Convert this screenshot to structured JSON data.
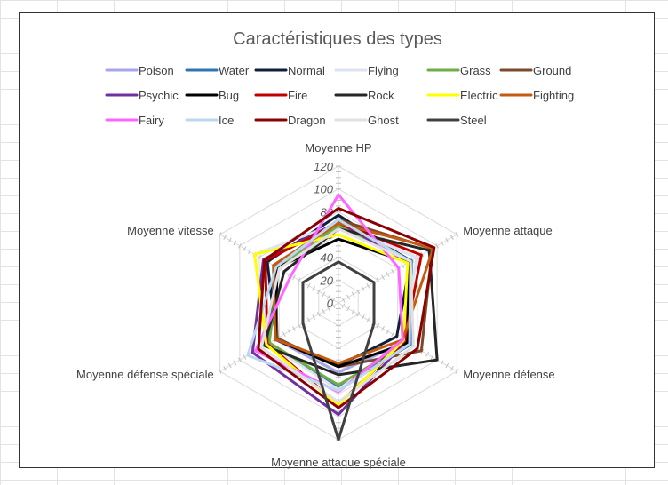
{
  "chart_data": {
    "type": "radar",
    "title": "Caractéristiques des types",
    "axes": [
      "Moyenne HP",
      "Moyenne attaque",
      "Moyenne défense",
      "Moyenne attaque spéciale",
      "Moyenne défense spéciale",
      "Moyenne vitesse"
    ],
    "radial_ticks": [
      "0",
      "20",
      "40",
      "60",
      "80",
      "100",
      "120"
    ],
    "rlim": [
      0,
      120
    ],
    "grid": true,
    "legend_position": "top",
    "series": [
      {
        "name": "Poison",
        "color": "#a6a6e8",
        "values": [
          67,
          73,
          68,
          61,
          64,
          63
        ]
      },
      {
        "name": "Water",
        "color": "#2e75b6",
        "values": [
          72,
          74,
          73,
          74,
          70,
          65
        ]
      },
      {
        "name": "Normal",
        "color": "#0f1e3d",
        "values": [
          77,
          73,
          59,
          55,
          63,
          72
        ]
      },
      {
        "name": "Flying",
        "color": "#dde4f0",
        "values": [
          70,
          79,
          66,
          76,
          72,
          85
        ]
      },
      {
        "name": "Grass",
        "color": "#70ad47",
        "values": [
          68,
          73,
          70,
          72,
          70,
          61
        ]
      },
      {
        "name": "Ground",
        "color": "#7b4a2b",
        "values": [
          73,
          95,
          84,
          56,
          62,
          64
        ]
      },
      {
        "name": "Psychic",
        "color": "#7030a0",
        "values": [
          71,
          71,
          68,
          98,
          87,
          76
        ]
      },
      {
        "name": "Bug",
        "color": "#000000",
        "values": [
          56,
          71,
          70,
          56,
          64,
          62
        ]
      },
      {
        "name": "Fire",
        "color": "#c00000",
        "values": [
          70,
          84,
          67,
          89,
          72,
          74
        ]
      },
      {
        "name": "Rock",
        "color": "#262626",
        "values": [
          65,
          92,
          100,
          63,
          75,
          55
        ]
      },
      {
        "name": "Electric",
        "color": "#ffff00",
        "values": [
          60,
          70,
          66,
          90,
          73,
          85
        ]
      },
      {
        "name": "Fighting",
        "color": "#c55a11",
        "values": [
          70,
          96,
          65,
          53,
          64,
          66
        ]
      },
      {
        "name": "Fairy",
        "color": "#ff66ff",
        "values": [
          95,
          61,
          65,
          78,
          84,
          48
        ]
      },
      {
        "name": "Ice",
        "color": "#bdd7ee",
        "values": [
          73,
          73,
          72,
          77,
          92,
          63
        ]
      },
      {
        "name": "Dragon",
        "color": "#8b0000",
        "values": [
          83,
          97,
          80,
          92,
          81,
          75
        ]
      },
      {
        "name": "Ghost",
        "color": "#e0e0e0",
        "values": [
          65,
          73,
          76,
          87,
          78,
          60
        ]
      },
      {
        "name": "Steel",
        "color": "#404040",
        "values": [
          36,
          36,
          36,
          120,
          36,
          36
        ]
      }
    ]
  }
}
